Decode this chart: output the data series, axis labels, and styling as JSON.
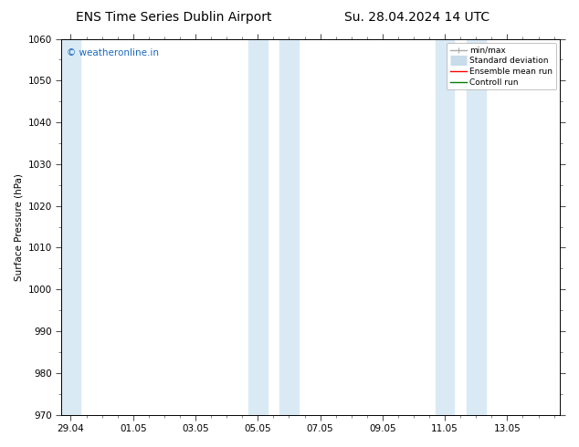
{
  "title_left": "ENS Time Series Dublin Airport",
  "title_right": "Su. 28.04.2024 14 UTC",
  "ylabel": "Surface Pressure (hPa)",
  "ylim": [
    970,
    1060
  ],
  "yticks": [
    970,
    980,
    990,
    1000,
    1010,
    1020,
    1030,
    1040,
    1050,
    1060
  ],
  "xlim_start": -0.3,
  "xlim_end": 15.7,
  "xtick_labels": [
    "29.04",
    "01.05",
    "03.05",
    "05.05",
    "07.05",
    "09.05",
    "11.05",
    "13.05"
  ],
  "xtick_positions": [
    0,
    2,
    4,
    6,
    8,
    10,
    12,
    14
  ],
  "shaded_bands": [
    {
      "xmin": -0.3,
      "xmax": 0.3
    },
    {
      "xmin": 5.7,
      "xmax": 6.3
    },
    {
      "xmin": 6.7,
      "xmax": 7.3
    },
    {
      "xmin": 11.7,
      "xmax": 12.3
    },
    {
      "xmin": 12.7,
      "xmax": 13.3
    }
  ],
  "shade_color": "#daeaf5",
  "watermark_text": "© weatheronline.in",
  "watermark_color": "#1a6abf",
  "legend_items": [
    {
      "label": "min/max",
      "color": "#aaaaaa",
      "lw": 1,
      "type": "minmax"
    },
    {
      "label": "Standard deviation",
      "color": "#c8dcea",
      "lw": 8,
      "type": "band"
    },
    {
      "label": "Ensemble mean run",
      "color": "red",
      "lw": 1,
      "type": "line"
    },
    {
      "label": "Controll run",
      "color": "green",
      "lw": 1,
      "type": "line"
    }
  ],
  "bg_color": "#ffffff",
  "plot_bg_color": "#ffffff",
  "tick_color": "#000000",
  "spine_color": "#000000",
  "font_size": 7.5,
  "title_font_size": 10
}
